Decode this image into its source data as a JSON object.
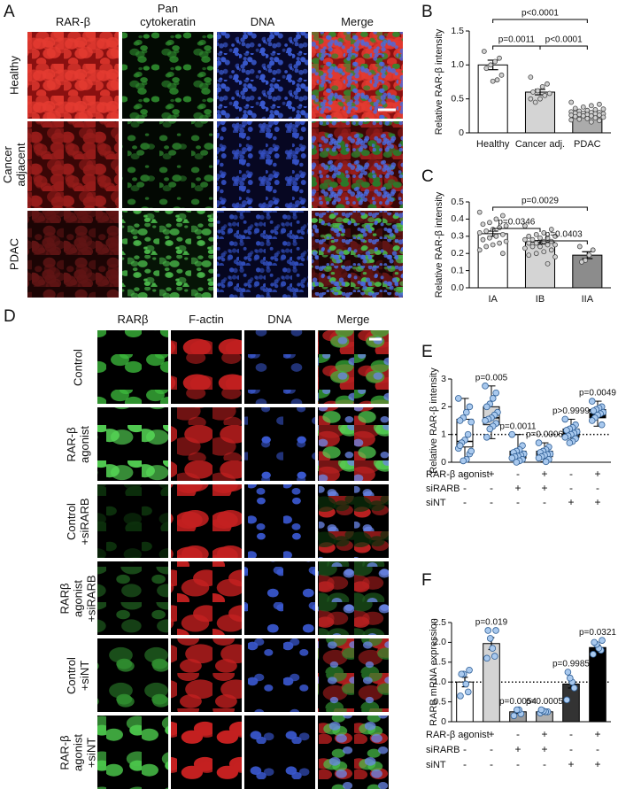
{
  "panel_labels": [
    "A",
    "B",
    "C",
    "D",
    "E",
    "F"
  ],
  "panel_a": {
    "columns": [
      "RAR-β",
      "Pan cytokeratin",
      "DNA",
      "Merge"
    ],
    "rows": [
      "Healthy",
      "Cancer adjacent",
      "PDAC"
    ]
  },
  "panel_d": {
    "columns": [
      "RARβ",
      "F-actin",
      "DNA",
      "Merge"
    ],
    "rows": [
      "Control",
      "RAR-β agonist",
      "Control +siRARB",
      "RARβ agonist +siRARB",
      "Control +siNT",
      "RAR-β agonist +siNT"
    ]
  },
  "chart_data": [
    {
      "type": "bar",
      "ylabel": "Relative RAR-β intensity",
      "categories": [
        "Healthy",
        "Cancer adj.",
        "PDAC"
      ],
      "values": [
        1.0,
        0.6,
        0.29
      ],
      "errors": [
        0.07,
        0.04,
        0.01
      ],
      "colors": [
        "#ffffff",
        "#d4d4d4",
        "#ababab"
      ],
      "point_color": "#d0d0d0",
      "point_edge": "#4a4a4a",
      "points": [
        [
          1.2,
          1.1,
          1.05,
          1.0,
          0.95,
          0.85,
          0.78,
          0.76
        ],
        [
          0.82,
          0.72,
          0.68,
          0.62,
          0.6,
          0.58,
          0.55,
          0.5,
          0.45,
          0.5
        ],
        [
          0.45,
          0.42,
          0.4,
          0.38,
          0.36,
          0.35,
          0.34,
          0.33,
          0.32,
          0.31,
          0.3,
          0.3,
          0.29,
          0.29,
          0.28,
          0.28,
          0.27,
          0.27,
          0.26,
          0.26,
          0.25,
          0.25,
          0.24,
          0.23,
          0.22,
          0.21,
          0.2,
          0.19,
          0.18,
          0.16
        ]
      ],
      "ylim": [
        0,
        1.5
      ],
      "yticks": [
        0,
        0.5,
        {
          "value": 1,
          "label": "1.0"
        },
        1.5
      ],
      "comparisons": [
        {
          "groups": [
            "Healthy",
            "Cancer adj."
          ],
          "label": "p=0.0011"
        },
        {
          "groups": [
            "Cancer adj.",
            "PDAC"
          ],
          "label": "p<0.0001"
        },
        {
          "groups": [
            "Healthy",
            "PDAC"
          ],
          "label": "p<0.0001"
        }
      ]
    },
    {
      "type": "bar",
      "ylabel": "Relative RAR-β intensity",
      "categories": [
        "IA",
        "IB",
        "IIA"
      ],
      "values": [
        0.315,
        0.265,
        0.19
      ],
      "errors": [
        0.015,
        0.01,
        0.02
      ],
      "colors": [
        "#ffffff",
        "#d4d4d4",
        "#8c8c8c"
      ],
      "point_color": "#d0d0d0",
      "point_edge": "#4a4a4a",
      "points": [
        [
          0.44,
          0.42,
          0.4,
          0.38,
          0.37,
          0.36,
          0.35,
          0.34,
          0.33,
          0.32,
          0.31,
          0.3,
          0.29,
          0.28,
          0.27,
          0.26,
          0.25,
          0.24,
          0.22,
          0.2
        ],
        [
          0.36,
          0.34,
          0.32,
          0.31,
          0.3,
          0.3,
          0.29,
          0.29,
          0.28,
          0.28,
          0.27,
          0.27,
          0.26,
          0.26,
          0.25,
          0.25,
          0.24,
          0.24,
          0.23,
          0.22,
          0.21,
          0.2,
          0.19,
          0.18,
          0.14
        ],
        [
          0.24,
          0.22,
          0.19,
          0.16,
          0.15
        ]
      ],
      "ylim": [
        0,
        0.5
      ],
      "yticks": [
        {
          "value": 0,
          "label": "0.0"
        },
        0.1,
        0.2,
        0.3,
        0.4,
        0.5
      ],
      "comparisons": [
        {
          "groups": [
            "IA",
            "IB"
          ],
          "label": "p=0.0346"
        },
        {
          "groups": [
            "IB",
            "IIA"
          ],
          "label": "p=0.0403"
        },
        {
          "groups": [
            "IA",
            "IIA"
          ],
          "label": "p=0.0029"
        }
      ]
    },
    {
      "type": "box",
      "ylabel": "Relative RAR-β intensity",
      "min": [
        0.05,
        0.85,
        0.0,
        0.02,
        0.7,
        1.3
      ],
      "q1": [
        0.55,
        1.35,
        0.15,
        0.2,
        0.9,
        1.6
      ],
      "median": [
        0.75,
        1.6,
        0.25,
        0.3,
        1.05,
        1.8
      ],
      "q3": [
        1.55,
        2.0,
        0.4,
        0.4,
        1.2,
        1.9
      ],
      "max": [
        2.3,
        2.75,
        1.0,
        0.7,
        1.55,
        2.2
      ],
      "colors": [
        "#ffffff",
        "#d4d4d4",
        "#a6a6a6",
        "#a6a6a6",
        "#4d4d4d",
        "#000000"
      ],
      "point_color": "#a9c9ee",
      "point_edge": "#2f5f96",
      "points": [
        [
          2.3,
          2.0,
          1.8,
          1.6,
          1.5,
          1.45,
          1.0,
          0.8,
          0.7,
          0.5,
          0.3,
          0.1,
          0.05,
          0.6,
          0.4
        ],
        [
          2.75,
          2.5,
          2.3,
          2.1,
          2.0,
          1.8,
          1.7,
          1.6,
          1.55,
          1.5,
          1.4,
          1.3,
          1.2,
          0.9
        ],
        [
          1.0,
          0.6,
          0.45,
          0.4,
          0.35,
          0.3,
          0.25,
          0.22,
          0.2,
          0.15,
          0.1,
          0.05,
          0.0
        ],
        [
          0.7,
          0.55,
          0.45,
          0.4,
          0.35,
          0.3,
          0.28,
          0.25,
          0.2,
          0.15,
          0.1,
          0.02
        ],
        [
          1.55,
          1.35,
          1.25,
          1.2,
          1.15,
          1.1,
          1.05,
          1.0,
          0.95,
          0.9,
          0.85,
          0.75,
          0.7
        ],
        [
          2.2,
          2.0,
          1.95,
          1.9,
          1.85,
          1.8,
          1.75,
          1.7,
          1.6,
          1.5,
          1.35
        ]
      ],
      "ylim": [
        0,
        3
      ],
      "yticks": [
        0,
        1,
        2,
        3
      ],
      "refline": 1,
      "annotations": [
        null,
        "p=0.005",
        "p=0.0011",
        "p=0.0006",
        "p>0.9999",
        "p=0.0049"
      ],
      "conditions": [
        {
          "name": "RAR-β agonist",
          "marks": [
            "-",
            "+",
            "-",
            "+",
            "-",
            "+"
          ]
        },
        {
          "name": "siRARB",
          "marks": [
            "-",
            "-",
            "+",
            "+",
            "-",
            "-"
          ]
        },
        {
          "name": "siNT",
          "marks": [
            "-",
            "-",
            "-",
            "-",
            "+",
            "+"
          ]
        }
      ]
    },
    {
      "type": "bar",
      "ylabel": "RARB mRNA expression",
      "values": [
        1.0,
        1.97,
        0.25,
        0.25,
        0.95,
        1.87
      ],
      "errors": [
        0.12,
        0.15,
        0.04,
        0.02,
        0.1,
        0.06
      ],
      "colors": [
        "#ffffff",
        "#d4d4d4",
        "#9a9a9a",
        "#b0b0b0",
        "#333333",
        "#000000"
      ],
      "point_color": "#a9c9ee",
      "point_edge": "#2f5f96",
      "points": [
        [
          0.65,
          0.75,
          0.95,
          1.2,
          1.2,
          1.3
        ],
        [
          1.6,
          1.65,
          1.85,
          2.1,
          2.3,
          2.3
        ],
        [
          0.15,
          0.2,
          0.3,
          0.3
        ],
        [
          0.22,
          0.25,
          0.25,
          0.27,
          0.3
        ],
        [
          0.55,
          0.85,
          1.0,
          1.1,
          1.25
        ],
        [
          1.7,
          1.8,
          1.85,
          1.95,
          2.0,
          2.05
        ]
      ],
      "ylim": [
        0,
        2.5
      ],
      "yticks": [
        0,
        0.5,
        {
          "value": 1,
          "label": "1.0"
        },
        1.5,
        {
          "value": 2,
          "label": "2.0"
        },
        2.5
      ],
      "refline": 1,
      "annotations": [
        null,
        "p=0.019",
        "p=0.0054",
        "p=0.0005",
        "p=0.9985",
        "p=0.0321"
      ],
      "conditions": [
        {
          "name": "RAR-β agonist",
          "marks": [
            "-",
            "+",
            "-",
            "+",
            "-",
            "+"
          ]
        },
        {
          "name": "siRARB",
          "marks": [
            "-",
            "-",
            "+",
            "+",
            "-",
            "-"
          ]
        },
        {
          "name": "siNT",
          "marks": [
            "-",
            "-",
            "-",
            "-",
            "+",
            "+"
          ]
        }
      ]
    }
  ]
}
